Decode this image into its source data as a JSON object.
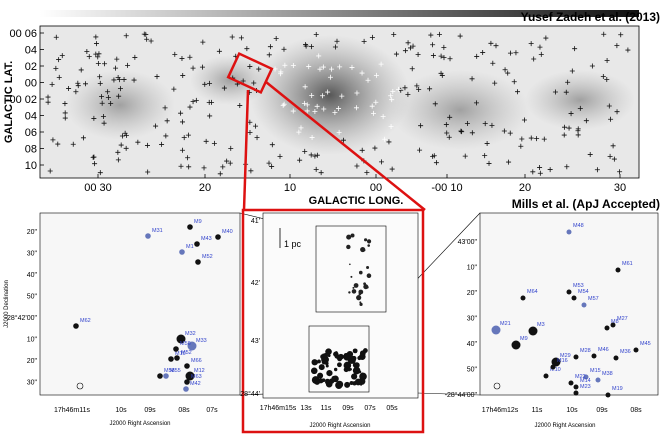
{
  "top": {
    "credit": "Yusef Zadeh et al. (2013)",
    "ylabel": "GALACTIC LAT.",
    "xlabel": "GALACTIC LONG.",
    "yticks": [
      "00 06",
      "04",
      "02",
      "00",
      "-00 02",
      "04",
      "06",
      "08",
      "10"
    ],
    "xticks": [
      "00 30",
      "20",
      "10",
      "00",
      "-00 10",
      "20",
      "30"
    ]
  },
  "mid": {
    "scale_label": "1 pc",
    "yticks": [
      "41'",
      "42'",
      "43'",
      "-28°44'"
    ],
    "xticks": [
      "17h46m15s",
      "13s",
      "11s",
      "09s",
      "07s",
      "05s"
    ],
    "xlabel": "J2000 Right Ascension"
  },
  "left": {
    "ylabel": "J2000 Declination",
    "xlabel": "J2000 Right Ascension",
    "yticks": [
      "20\"",
      "30\"",
      "40\"",
      "50\"",
      "-28°42'00\"",
      "10\"",
      "20\"",
      "30\""
    ],
    "xticks": [
      "17h46m11s",
      "10s",
      "09s",
      "08s",
      "07s"
    ],
    "sources": [
      "M31",
      "M9",
      "M43",
      "M40",
      "M1",
      "M52",
      "M62",
      "M32",
      "M33",
      "M10",
      "M58",
      "M66",
      "M55",
      "M12",
      "M56",
      "M63",
      "M42",
      "M52"
    ]
  },
  "right": {
    "credit": "Mills et al. (ApJ Accepted)",
    "yticks": [
      "43'00\"",
      "10\"",
      "20\"",
      "30\"",
      "40\"",
      "50\"",
      "-28°44'00\""
    ],
    "xticks": [
      "17h46m12s",
      "11s",
      "10s",
      "09s",
      "08s"
    ],
    "xlabel": "J2000 Right Ascension",
    "sources": [
      "M48",
      "M61",
      "M64",
      "M53",
      "M54",
      "M57",
      "M27",
      "M8",
      "M36",
      "M3",
      "M21",
      "M9",
      "M29",
      "M28",
      "M46",
      "M38",
      "M45",
      "M10",
      "M23",
      "M19",
      "M15",
      "M14",
      "M22",
      "M16"
    ]
  }
}
